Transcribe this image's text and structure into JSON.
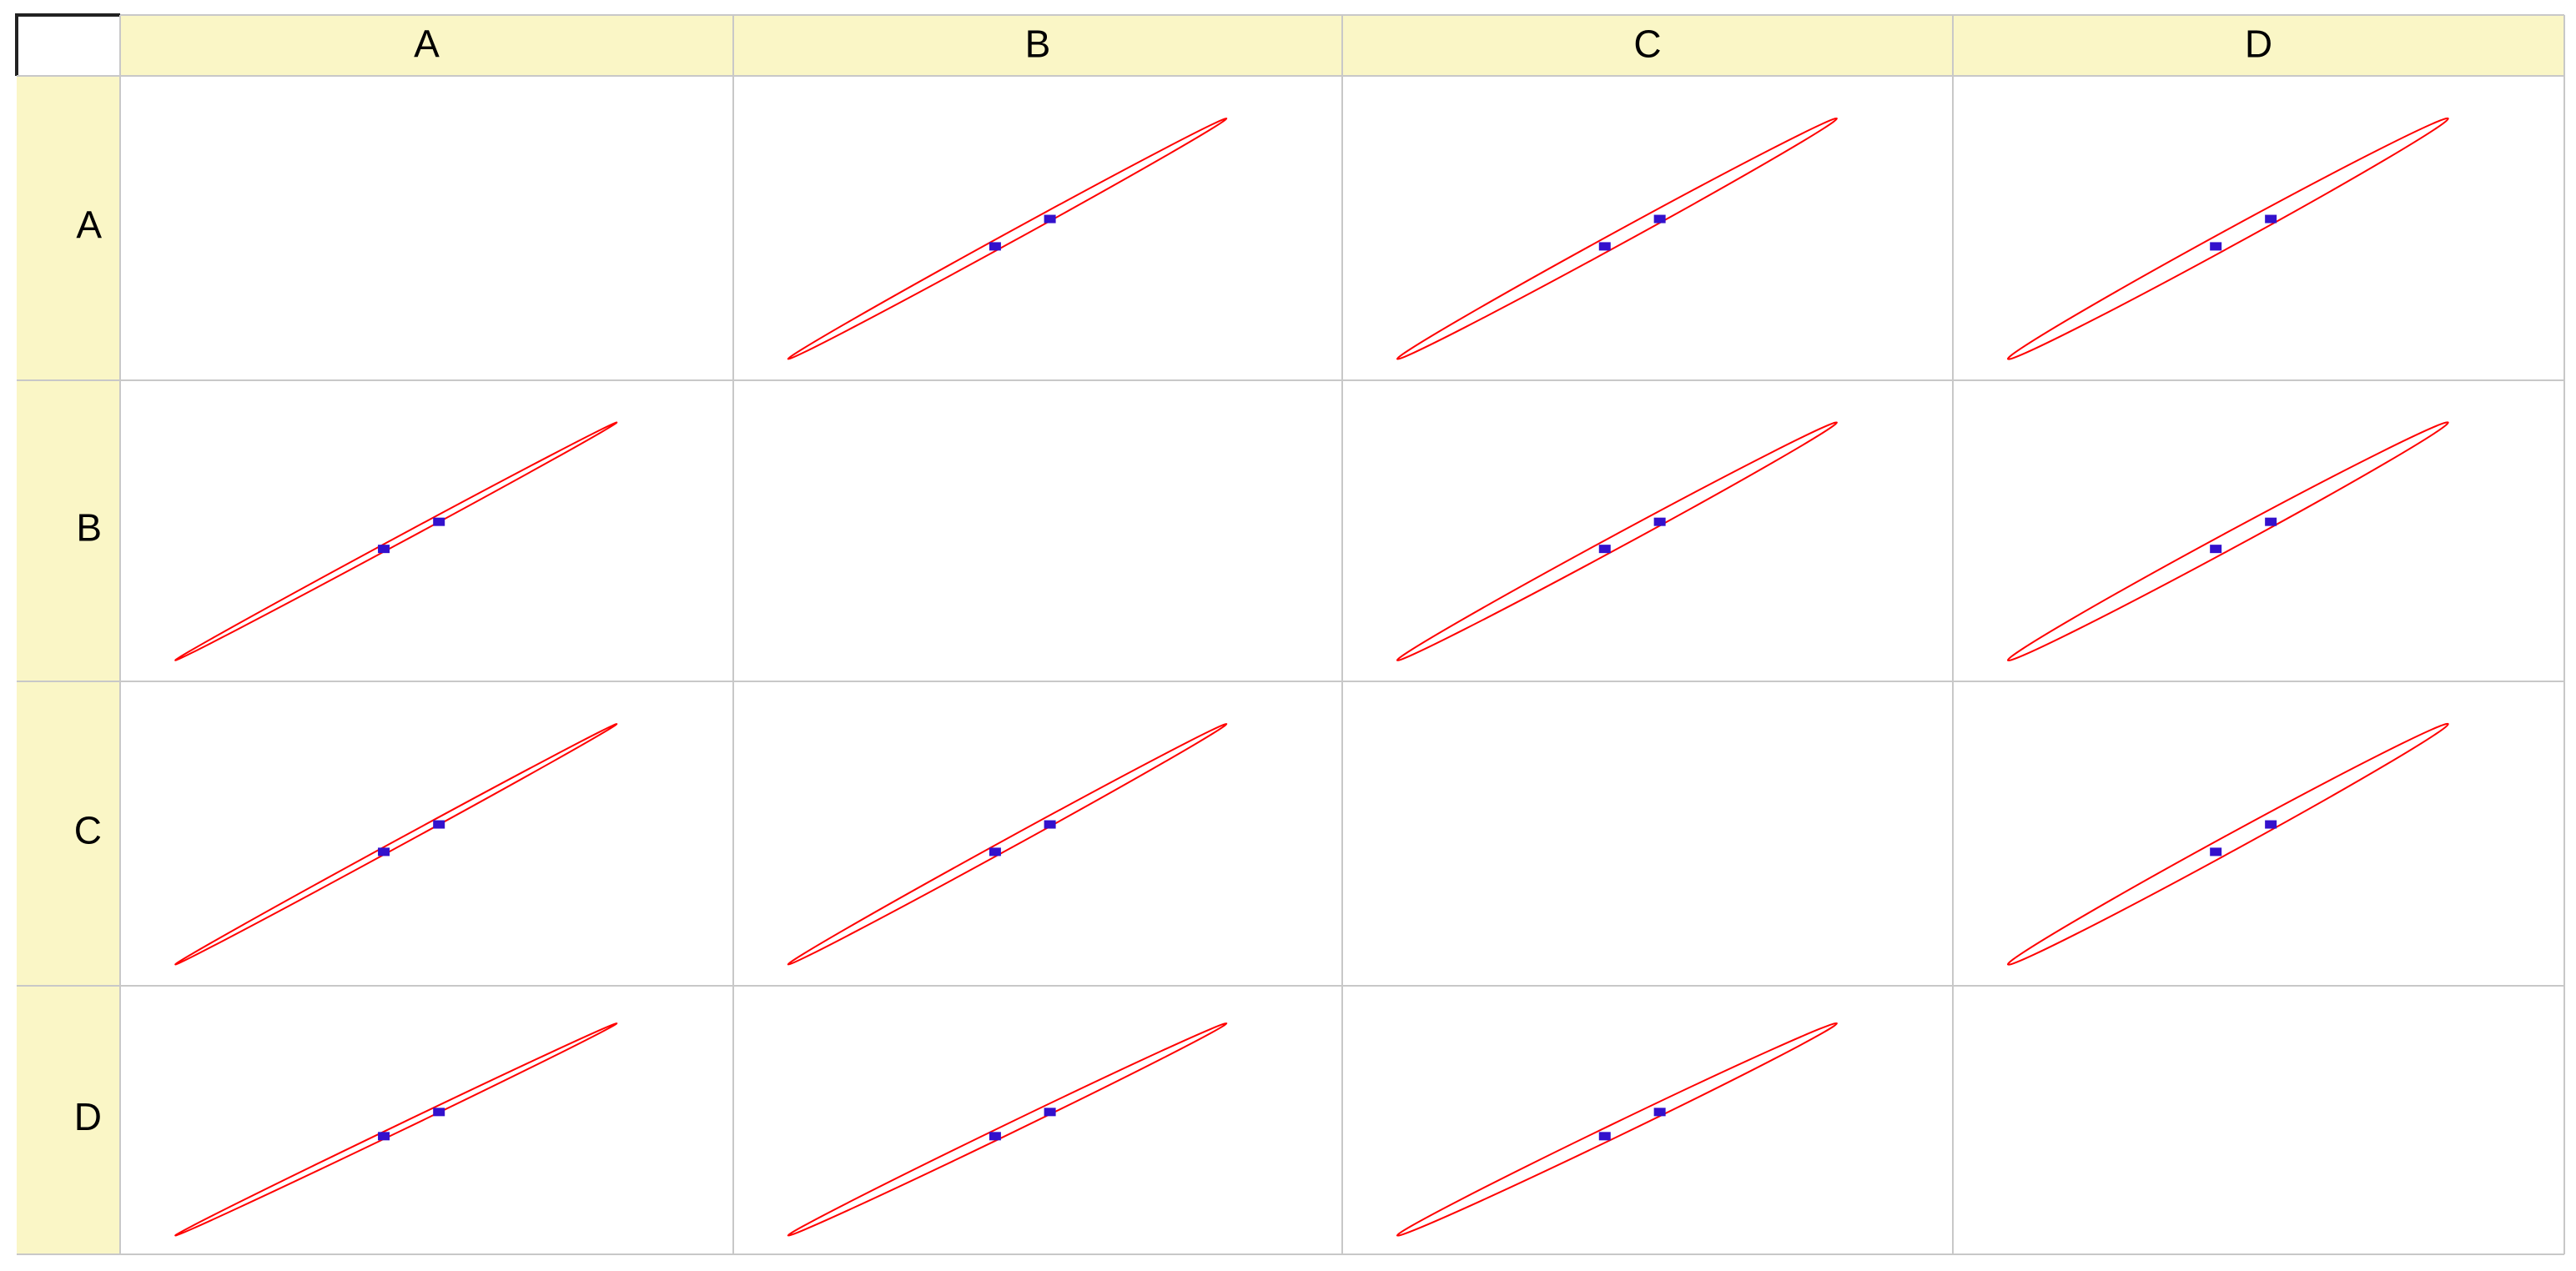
{
  "columns": [
    "A",
    "B",
    "C",
    "D"
  ],
  "rows": [
    "A",
    "B",
    "C",
    "D"
  ]
}
